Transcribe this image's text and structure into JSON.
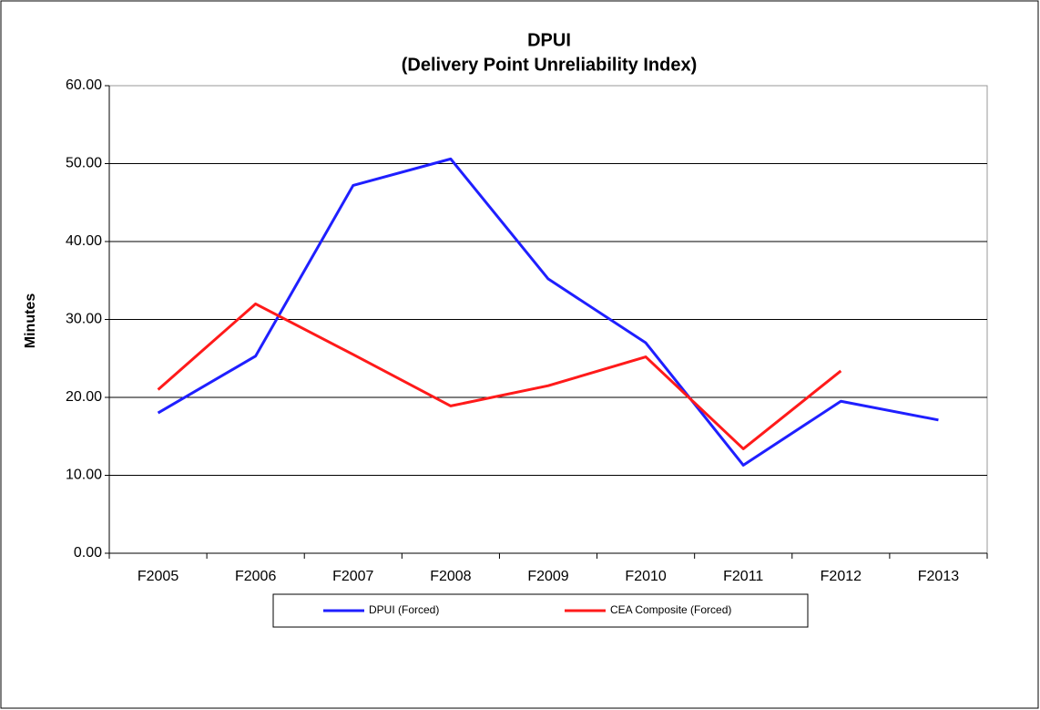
{
  "chart_data": {
    "type": "line",
    "title": "DPUI",
    "subtitle": "(Delivery Point Unreliability Index)",
    "y_label": "Minutes",
    "categories": [
      "F2005",
      "F2006",
      "F2007",
      "F2008",
      "F2009",
      "F2010",
      "F2011",
      "F2012",
      "F2013"
    ],
    "series": [
      {
        "name": "DPUI (Forced)",
        "color": "#1f1fff",
        "values": [
          18.0,
          25.3,
          47.2,
          50.6,
          35.2,
          27.0,
          11.3,
          19.5,
          17.1
        ]
      },
      {
        "name": "CEA Composite (Forced)",
        "color": "#ff1a1a",
        "values": [
          21.0,
          32.0,
          25.5,
          18.9,
          21.5,
          25.2,
          13.4,
          23.4,
          null
        ]
      }
    ],
    "ylim": [
      0,
      60
    ],
    "yticks": [
      {
        "value": 0,
        "label": "0.00"
      },
      {
        "value": 10,
        "label": "10.00"
      },
      {
        "value": 20,
        "label": "20.00"
      },
      {
        "value": 30,
        "label": "30.00"
      },
      {
        "value": 40,
        "label": "40.00"
      },
      {
        "value": 50,
        "label": "50.00"
      },
      {
        "value": 60,
        "label": "60.00"
      }
    ],
    "grid": true,
    "legend": "bottom"
  }
}
